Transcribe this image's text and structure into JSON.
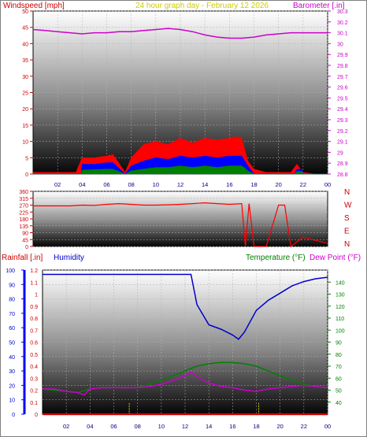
{
  "header": {
    "windspeed_label": "Windspeed [mph]",
    "title": "24 hour graph day - February 12 2026",
    "barometer_label": "Barometer [.in]"
  },
  "direction_labels": [
    "N",
    "W",
    "S",
    "E",
    "N"
  ],
  "lower_header": {
    "rainfall_label": "Rainfall [.in]",
    "humidity_label": "Humidity",
    "temperature_label": "Temperature (°F)",
    "dewpoint_label": "Dew Point (°F)"
  },
  "colors": {
    "windspeed_label": "#cc0000",
    "title": "#cccc00",
    "barometer": "#cc00cc",
    "humidity": "#0000cc",
    "temperature": "#008000",
    "dewpoint": "#cc00cc",
    "rainfall": "#cc0000",
    "gust": "#ff0000",
    "wind_avg": "#0000ff",
    "wind_low": "#008000",
    "direction": "#ff0000"
  },
  "chart_data": [
    {
      "id": "wind_baro",
      "type": "area",
      "x_ticks": [
        "02",
        "04",
        "06",
        "08",
        "10",
        "12",
        "14",
        "16",
        "18",
        "20",
        "22",
        "00"
      ],
      "y_left_ticks": [
        "0",
        "5",
        "10",
        "15",
        "20",
        "25",
        "30",
        "35",
        "40",
        "45",
        "50"
      ],
      "y_left_range": [
        0,
        50
      ],
      "y_right_ticks": [
        "28.8",
        "28.9",
        "29",
        "29.1",
        "29.2",
        "29.3",
        "29.4",
        "29.5",
        "29.6",
        "29.7",
        "29.8",
        "29.9",
        "30",
        "30.1",
        "30.2",
        "30.3"
      ],
      "y_right_range": [
        28.8,
        30.3
      ],
      "x_range": [
        0,
        24
      ],
      "series": [
        {
          "name": "gust",
          "x": [
            0,
            2,
            3.5,
            4,
            5,
            6,
            6.5,
            7.5,
            8,
            9,
            10,
            11,
            12,
            13,
            14,
            15,
            16,
            16.5,
            17,
            17.5,
            18,
            19,
            20,
            21,
            21.5,
            22,
            23,
            24
          ],
          "y": [
            0.5,
            0.5,
            0.5,
            5,
            5,
            5.5,
            6,
            0.5,
            5,
            9,
            10,
            9,
            11,
            9.5,
            11,
            10.5,
            11,
            11.5,
            11,
            4,
            1.5,
            0.5,
            0.5,
            0.5,
            3,
            0.5,
            0,
            0
          ]
        },
        {
          "name": "avg",
          "x": [
            0,
            3.9,
            4,
            5,
            6,
            6.5,
            7.5,
            8,
            9,
            10,
            11,
            12,
            13,
            14,
            15,
            16,
            17,
            17.5,
            18,
            21.3,
            21.5,
            21.9,
            22,
            24
          ],
          "y": [
            0,
            0,
            3,
            3,
            3.5,
            3.5,
            0,
            2.5,
            4,
            5,
            4.5,
            5.5,
            5,
            5.5,
            5,
            5.5,
            5.5,
            2.5,
            0,
            0,
            1.5,
            1.5,
            0,
            0
          ]
        },
        {
          "name": "low",
          "x": [
            0,
            3.9,
            4,
            6,
            6.5,
            7.5,
            8,
            9,
            10,
            11,
            12,
            13,
            14,
            15,
            16,
            17,
            17.5,
            18,
            21.3,
            21.5,
            21.9,
            22,
            24
          ],
          "y": [
            0,
            0,
            1.2,
            1.5,
            1.5,
            0,
            1,
            1.5,
            2,
            2,
            2.5,
            2,
            2.5,
            2,
            2.5,
            2.5,
            1,
            0,
            0,
            0.8,
            0.8,
            0,
            0
          ]
        },
        {
          "name": "barometer",
          "x": [
            0,
            1,
            2,
            3,
            4,
            5,
            6,
            7,
            8,
            9,
            10,
            11,
            12,
            13,
            14,
            15,
            16,
            17,
            18,
            19,
            20,
            21,
            22,
            23,
            24
          ],
          "y": [
            30.13,
            30.12,
            30.11,
            30.1,
            30.09,
            30.1,
            30.1,
            30.11,
            30.11,
            30.12,
            30.13,
            30.14,
            30.13,
            30.11,
            30.08,
            30.06,
            30.05,
            30.05,
            30.06,
            30.08,
            30.09,
            30.1,
            30.1,
            30.1,
            30.1
          ]
        }
      ]
    },
    {
      "id": "direction",
      "type": "line",
      "y_ticks": [
        "360",
        "315",
        "270",
        "225",
        "180",
        "135",
        "90",
        "45",
        "0"
      ],
      "y_range": [
        0,
        360
      ],
      "x_range": [
        0,
        24
      ],
      "series": [
        {
          "name": "direction",
          "x": [
            0,
            1,
            2,
            3,
            4,
            5,
            6,
            7,
            8,
            9,
            10,
            11,
            12,
            13,
            14,
            15,
            16,
            17,
            17.3,
            17.6,
            18,
            19,
            20,
            20.5,
            21,
            22,
            23,
            24
          ],
          "y": [
            265,
            265,
            265,
            265,
            270,
            268,
            275,
            280,
            275,
            270,
            270,
            272,
            275,
            280,
            285,
            280,
            275,
            280,
            0,
            280,
            0,
            0,
            270,
            270,
            0,
            60,
            40,
            20
          ]
        }
      ]
    },
    {
      "id": "temp_hum",
      "type": "line",
      "x_ticks": [
        "02",
        "04",
        "06",
        "08",
        "10",
        "12",
        "14",
        "16",
        "18",
        "20",
        "22",
        "00"
      ],
      "y_left_ticks": [
        "0",
        "10",
        "20",
        "30",
        "40",
        "50",
        "60",
        "70",
        "80",
        "90",
        "100"
      ],
      "y_left_range": [
        0,
        100
      ],
      "y_rain_ticks": [
        "0",
        "0.1",
        "0.2",
        "0.3",
        "0.4",
        "0.5",
        "0.6",
        "0.7",
        "0.8",
        "0.9",
        "1",
        "1.1",
        "1.2"
      ],
      "y_rain_range": [
        0,
        1.2
      ],
      "y_right_ticks": [
        "40",
        "50",
        "60",
        "70",
        "80",
        "90",
        "100",
        "110",
        "120",
        "130",
        "140"
      ],
      "y_right_range": [
        30,
        150
      ],
      "x_range": [
        0,
        24
      ],
      "series": [
        {
          "name": "humidity",
          "x": [
            0,
            1,
            2,
            3,
            4,
            5,
            6,
            7,
            8,
            9,
            10,
            11,
            12,
            12.5,
            13,
            14,
            15,
            16,
            16.5,
            17,
            18,
            19,
            20,
            21,
            22,
            23,
            24
          ],
          "y": [
            97,
            97,
            97,
            97,
            97,
            97,
            97,
            97,
            97,
            97,
            97,
            97,
            97,
            97,
            76,
            62,
            59,
            55,
            52,
            57,
            72,
            79,
            84,
            89,
            92,
            94,
            95
          ]
        },
        {
          "name": "temperature",
          "x": [
            0,
            1,
            2,
            3,
            4,
            5,
            6,
            7,
            8,
            9,
            10,
            11,
            12,
            13,
            14,
            15,
            16,
            17,
            18,
            19,
            20,
            21,
            22,
            23,
            24
          ],
          "y": [
            51,
            50,
            49,
            48,
            51,
            52,
            52,
            52,
            52,
            55,
            58,
            62,
            66,
            70,
            72,
            73,
            73,
            72,
            70,
            66,
            62,
            58,
            55,
            53,
            52
          ]
        },
        {
          "name": "dewpoint",
          "x": [
            0,
            1,
            2,
            3,
            3.5,
            4,
            5,
            6,
            7,
            8,
            9,
            10,
            11,
            12,
            12.5,
            13,
            14,
            15,
            16,
            17,
            18,
            19,
            20,
            21,
            22,
            23,
            24
          ],
          "y": [
            51,
            51,
            49,
            48,
            46,
            51,
            52,
            52,
            52,
            52,
            53,
            55,
            58,
            62,
            65,
            61,
            56,
            53,
            52,
            50,
            49,
            51,
            52,
            53,
            54,
            53,
            52
          ]
        },
        {
          "name": "rainfall",
          "x": [
            0,
            24
          ],
          "y": [
            0,
            0
          ]
        }
      ],
      "markers": [
        7.3,
        18.2
      ]
    }
  ]
}
